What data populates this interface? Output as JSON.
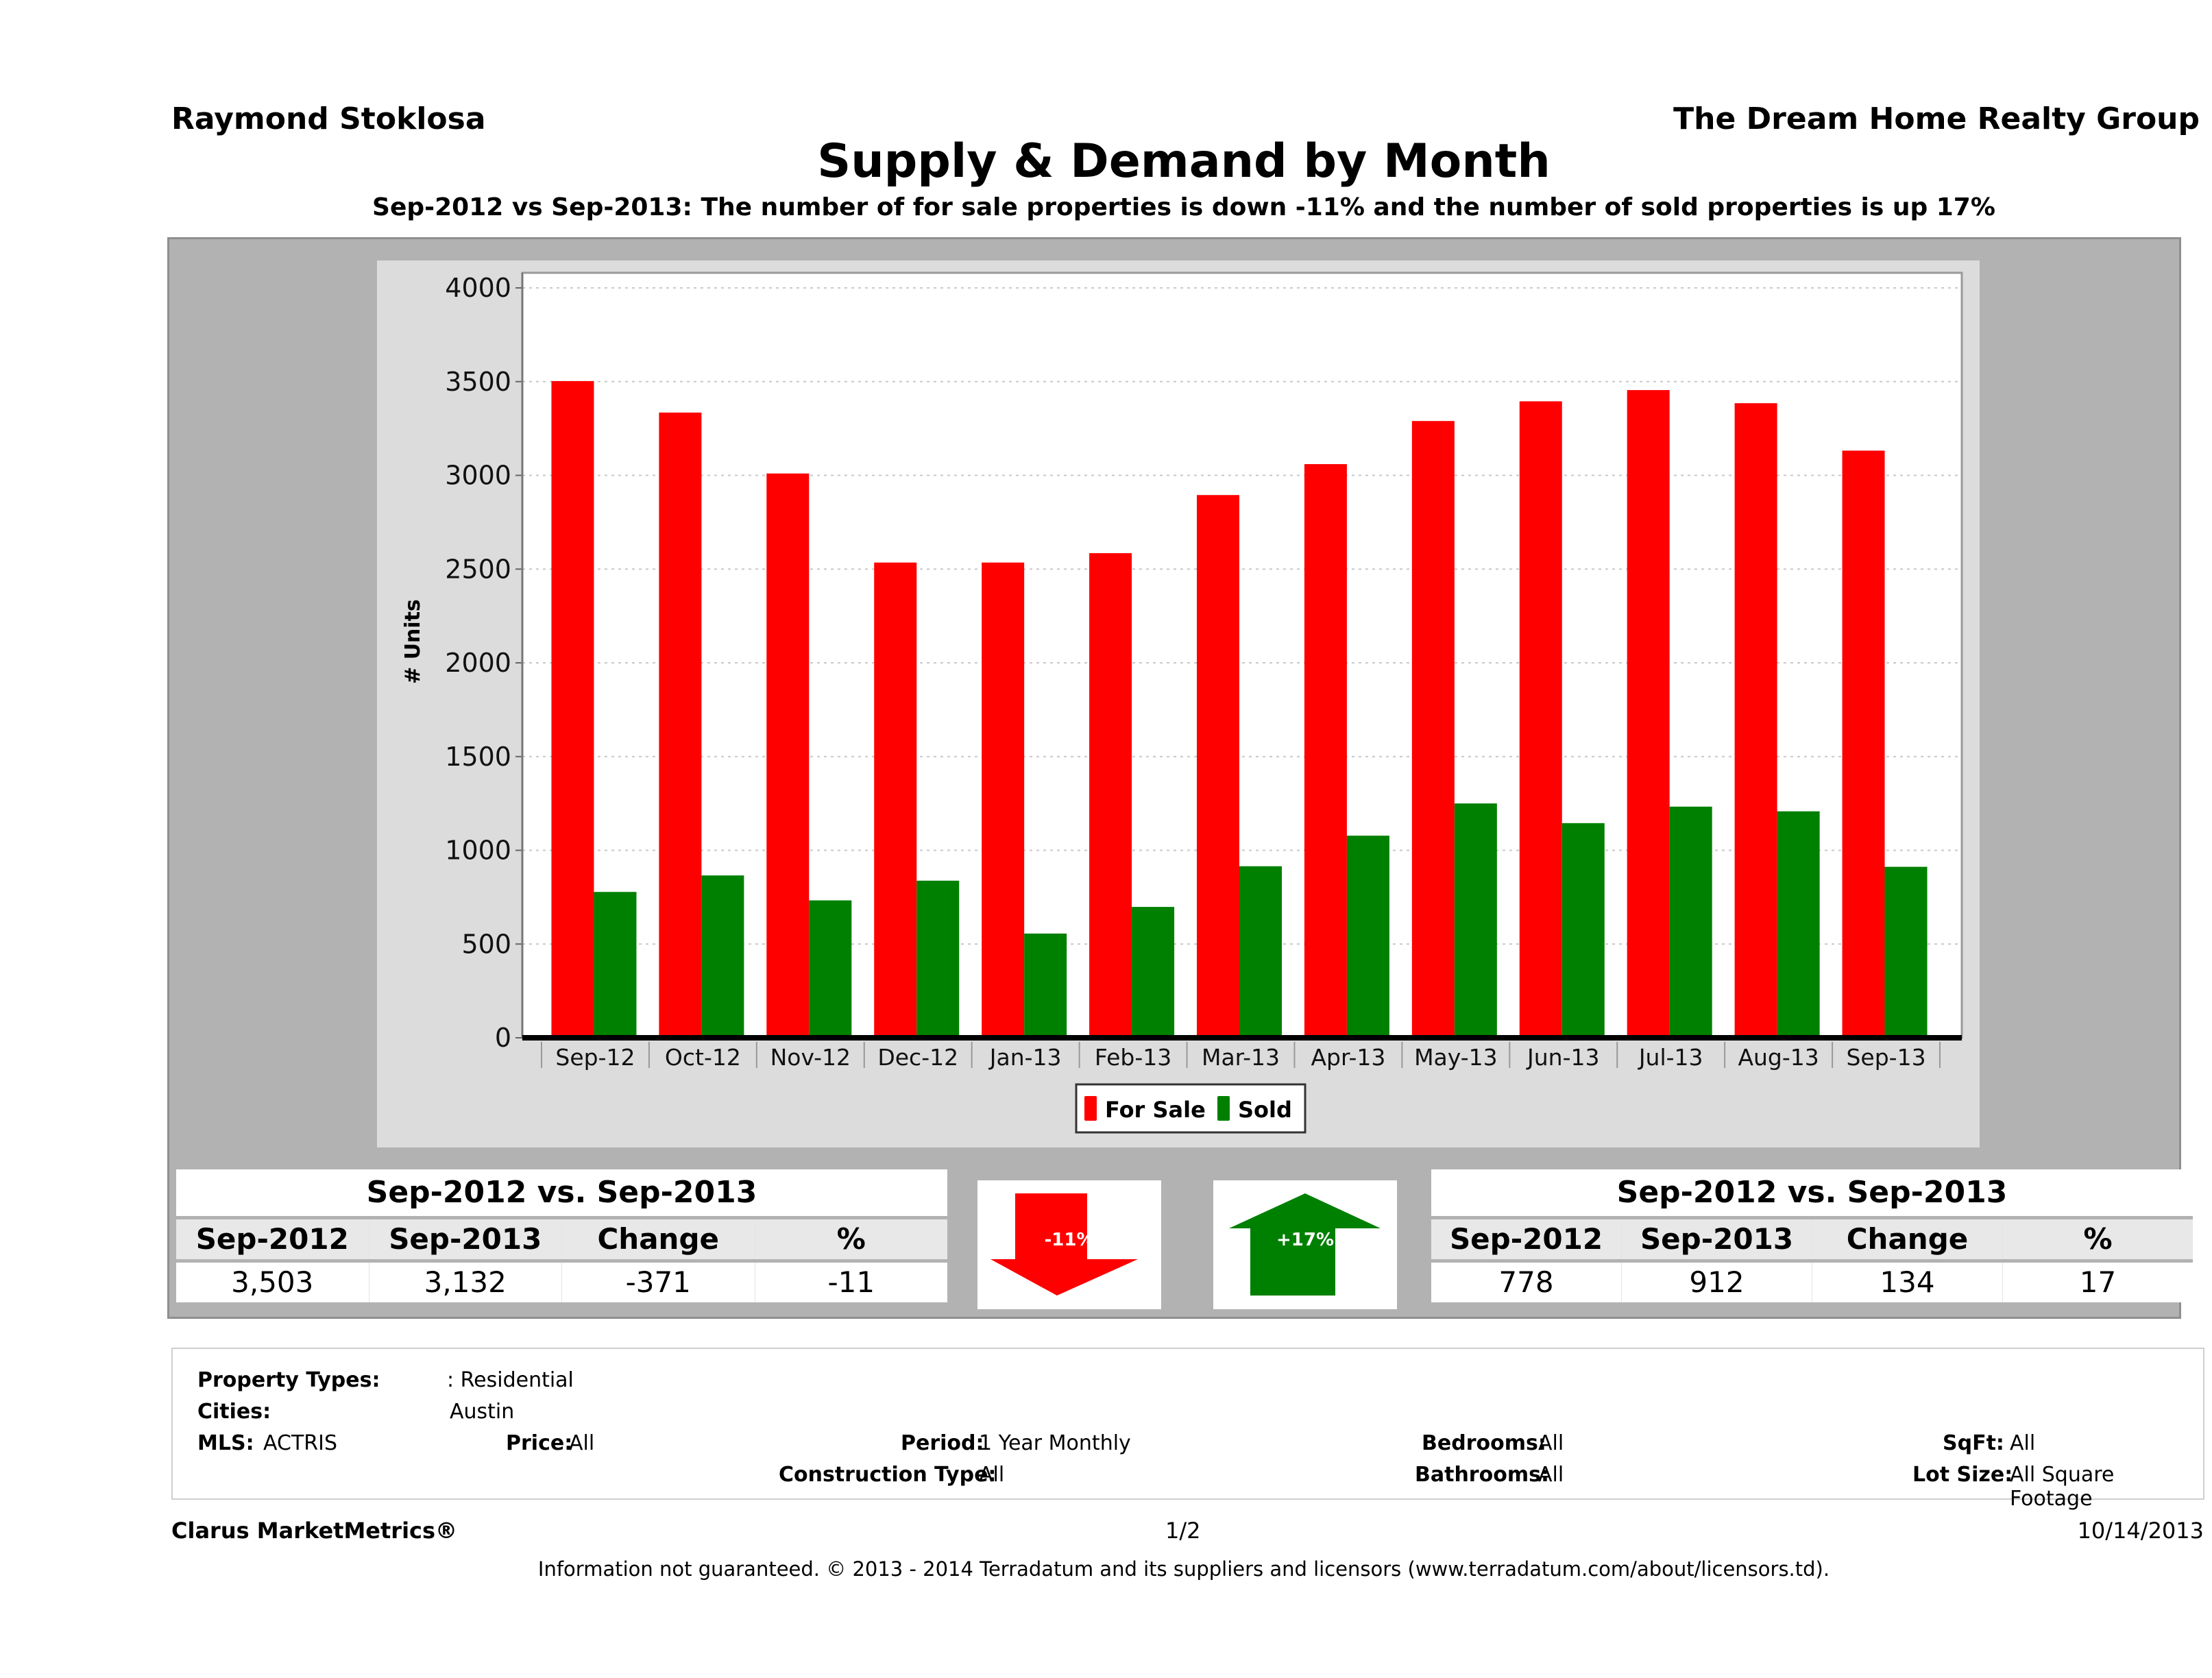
{
  "header": {
    "agent_name": "Raymond Stoklosa",
    "company": "The Dream Home Realty Group",
    "title": "Supply & Demand by Month",
    "subtitle": "Sep-2012 vs Sep-2013: The number of for sale properties is down -11% and the number of sold properties is up 17%"
  },
  "chart_data": {
    "type": "bar",
    "title": "",
    "xlabel": "",
    "ylabel": "# Units",
    "ylim": [
      0,
      4000
    ],
    "yticks": [
      0,
      500,
      1000,
      1500,
      2000,
      2500,
      3000,
      3500,
      4000
    ],
    "grid": true,
    "legend_position": "bottom-center",
    "categories": [
      "Sep-12",
      "Oct-12",
      "Nov-12",
      "Dec-12",
      "Jan-13",
      "Feb-13",
      "Mar-13",
      "Apr-13",
      "May-13",
      "Jun-13",
      "Jul-13",
      "Aug-13",
      "Sep-13"
    ],
    "series": [
      {
        "name": "For Sale",
        "color": "#ff0000",
        "values": [
          3503,
          3335,
          3010,
          2535,
          2535,
          2585,
          2895,
          3060,
          3290,
          3395,
          3455,
          3385,
          3132
        ]
      },
      {
        "name": "Sold",
        "color": "#008000",
        "values": [
          778,
          866,
          733,
          838,
          556,
          698,
          915,
          1078,
          1250,
          1145,
          1233,
          1208,
          912
        ]
      }
    ]
  },
  "for_sale_summary": {
    "title": "Sep-2012 vs. Sep-2013",
    "headers": [
      "Sep-2012",
      "Sep-2013",
      "Change",
      "%"
    ],
    "values": [
      "3,503",
      "3,132",
      "-371",
      "-11"
    ],
    "indicator": {
      "direction": "down",
      "label": "-11%",
      "color": "#ff0000"
    }
  },
  "sold_summary": {
    "title": "Sep-2012 vs. Sep-2013",
    "headers": [
      "Sep-2012",
      "Sep-2013",
      "Change",
      "%"
    ],
    "values": [
      "778",
      "912",
      "134",
      "17"
    ],
    "indicator": {
      "direction": "up",
      "label": "+17%",
      "color": "#008000"
    }
  },
  "criteria": {
    "property_types_label": "Property Types:",
    "property_types_value": ": Residential",
    "cities_label": "Cities:",
    "cities_value": "Austin",
    "mls_label": "MLS:",
    "mls_value": "ACTRIS",
    "price_label": "Price:",
    "price_value": "All",
    "period_label": "Period:",
    "period_value": "1 Year Monthly",
    "construction_label": "Construction Type:",
    "construction_value": "All",
    "bedrooms_label": "Bedrooms:",
    "bedrooms_value": "All",
    "bathrooms_label": "Bathrooms:",
    "bathrooms_value": "All",
    "sqft_label": "SqFt:",
    "sqft_value": "All",
    "lotsize_label": "Lot Size:",
    "lotsize_value": "All Square Footage"
  },
  "footer": {
    "brand": "Clarus MarketMetrics®",
    "page": "1/2",
    "date": "10/14/2013",
    "disclaimer": "Information not guaranteed. © 2013 - 2014 Terradatum and its suppliers and licensors (www.terradatum.com/about/licensors.td)."
  }
}
